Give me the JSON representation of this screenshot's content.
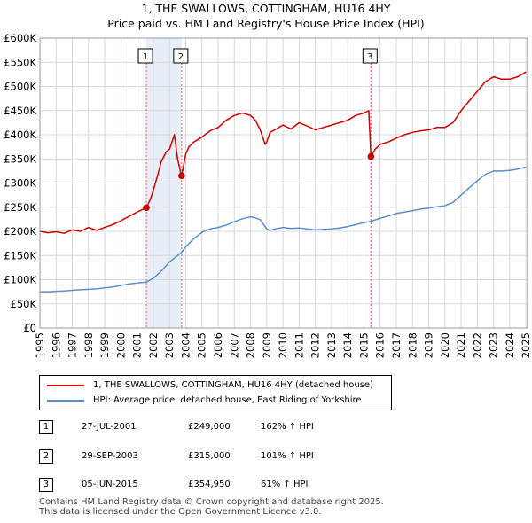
{
  "title_line1": "1, THE SWALLOWS, COTTINGHAM, HU16 4HY",
  "title_line2": "Price paid vs. HM Land Registry's House Price Index (HPI)",
  "legend": {
    "property_label": "1, THE SWALLOWS, COTTINGHAM, HU16 4HY (detached house)",
    "hpi_label": "HPI: Average price, detached house, East Riding of Yorkshire"
  },
  "sales": [
    {
      "num": "1",
      "date": "27-JUL-2001",
      "price": "£249,000",
      "hpi": "162% ↑ HPI"
    },
    {
      "num": "2",
      "date": "29-SEP-2003",
      "price": "£315,000",
      "hpi": "101% ↑ HPI"
    },
    {
      "num": "3",
      "date": "05-JUN-2015",
      "price": "£354,950",
      "hpi": "61% ↑ HPI"
    }
  ],
  "footer_line1": "Contains HM Land Registry data © Crown copyright and database right 2025.",
  "footer_line2": "This data is licensed under the Open Government Licence v3.0.",
  "colors": {
    "property": "#cc0000",
    "hpi": "#5a8fcc",
    "shade": "#e8eef8",
    "grid": "#d8d8d8",
    "vline": "#e06060"
  },
  "chart_data": {
    "type": "line",
    "xlim": [
      1995,
      2025.1
    ],
    "ylim": [
      0,
      600000
    ],
    "yticks": [
      {
        "value": 0,
        "label": "£0"
      },
      {
        "value": 50000,
        "label": "£50K"
      },
      {
        "value": 100000,
        "label": "£100K"
      },
      {
        "value": 150000,
        "label": "£150K"
      },
      {
        "value": 200000,
        "label": "£200K"
      },
      {
        "value": 250000,
        "label": "£250K"
      },
      {
        "value": 300000,
        "label": "£300K"
      },
      {
        "value": 350000,
        "label": "£350K"
      },
      {
        "value": 400000,
        "label": "£400K"
      },
      {
        "value": 450000,
        "label": "£450K"
      },
      {
        "value": 500000,
        "label": "£500K"
      },
      {
        "value": 550000,
        "label": "£550K"
      },
      {
        "value": 600000,
        "label": "£600K"
      }
    ],
    "xticks": [
      "1995",
      "1996",
      "1997",
      "1998",
      "1999",
      "2000",
      "2001",
      "2002",
      "2003",
      "2004",
      "2005",
      "2006",
      "2007",
      "2008",
      "2009",
      "2010",
      "2011",
      "2012",
      "2013",
      "2014",
      "2015",
      "2016",
      "2017",
      "2018",
      "2019",
      "2020",
      "2021",
      "2022",
      "2023",
      "2024",
      "2025"
    ],
    "shaded_ranges": [
      [
        2001.57,
        2003.75
      ],
      [
        2025.0,
        2025.1
      ]
    ],
    "sale_markers": [
      {
        "label": "1",
        "x": 2001.57,
        "y": 249000
      },
      {
        "label": "2",
        "x": 2003.75,
        "y": 315000
      },
      {
        "label": "3",
        "x": 2015.43,
        "y": 354950
      }
    ],
    "series": [
      {
        "name": "1, THE SWALLOWS, COTTINGHAM, HU16 4HY (detached house)",
        "x": [
          1995,
          1995.5,
          1996,
          1996.5,
          1997,
          1997.5,
          1998,
          1998.5,
          1999,
          1999.5,
          2000,
          2000.5,
          2001,
          2001.57,
          2001.8,
          2002,
          2002.3,
          2002.5,
          2002.8,
          2003,
          2003.3,
          2003.5,
          2003.7,
          2003.75,
          2004,
          2004.2,
          2004.5,
          2005,
          2005.5,
          2006,
          2006.5,
          2007,
          2007.5,
          2008,
          2008.3,
          2008.6,
          2008.9,
          2009,
          2009.2,
          2009.5,
          2010,
          2010.5,
          2011,
          2011.5,
          2012,
          2012.5,
          2013,
          2013.5,
          2014,
          2014.5,
          2015,
          2015.3,
          2015.43,
          2015.7,
          2016,
          2016.5,
          2017,
          2017.5,
          2018,
          2018.5,
          2019,
          2019.5,
          2020,
          2020.5,
          2021,
          2021.5,
          2022,
          2022.5,
          2023,
          2023.5,
          2024,
          2024.5,
          2025
        ],
        "y": [
          200000,
          197000,
          199000,
          196000,
          203000,
          200000,
          208000,
          202000,
          208000,
          214000,
          222000,
          231000,
          240000,
          249000,
          265000,
          285000,
          320000,
          345000,
          365000,
          370000,
          400000,
          350000,
          320000,
          315000,
          360000,
          375000,
          385000,
          395000,
          408000,
          415000,
          430000,
          440000,
          445000,
          440000,
          430000,
          410000,
          380000,
          385000,
          405000,
          410000,
          420000,
          412000,
          425000,
          418000,
          410000,
          415000,
          420000,
          425000,
          430000,
          440000,
          445000,
          450000,
          354950,
          370000,
          380000,
          385000,
          393000,
          400000,
          405000,
          408000,
          410000,
          415000,
          415000,
          425000,
          450000,
          470000,
          490000,
          510000,
          520000,
          515000,
          515000,
          520000,
          530000
        ]
      },
      {
        "name": "HPI: Average price, detached house, East Riding of Yorkshire",
        "x": [
          1995,
          1995.5,
          1996,
          1996.5,
          1997,
          1997.5,
          1998,
          1998.5,
          1999,
          1999.5,
          2000,
          2000.5,
          2001,
          2001.57,
          2002,
          2002.5,
          2003,
          2003.5,
          2003.75,
          2004,
          2004.5,
          2005,
          2005.5,
          2006,
          2006.5,
          2007,
          2007.5,
          2008,
          2008.3,
          2008.6,
          2008.9,
          2009,
          2009.2,
          2009.5,
          2010,
          2010.5,
          2011,
          2011.5,
          2012,
          2012.5,
          2013,
          2013.5,
          2014,
          2014.5,
          2015,
          2015.43,
          2016,
          2016.5,
          2017,
          2017.5,
          2018,
          2018.5,
          2019,
          2019.5,
          2020,
          2020.5,
          2021,
          2021.5,
          2022,
          2022.5,
          2023,
          2023.5,
          2024,
          2024.5,
          2025
        ],
        "y": [
          75000,
          75000,
          76000,
          76500,
          78000,
          79000,
          80000,
          81000,
          83000,
          85000,
          88000,
          91000,
          93000,
          95000,
          103000,
          118000,
          137000,
          150000,
          157000,
          168000,
          185000,
          198000,
          205000,
          208000,
          213000,
          220000,
          226000,
          230000,
          228000,
          224000,
          210000,
          205000,
          202000,
          205000,
          208000,
          206000,
          207000,
          205000,
          203000,
          204000,
          205000,
          207000,
          210000,
          214000,
          218000,
          221000,
          227000,
          232000,
          237000,
          240000,
          243000,
          246000,
          248000,
          251000,
          253000,
          260000,
          275000,
          290000,
          305000,
          318000,
          325000,
          325000,
          326000,
          329000,
          333000
        ]
      }
    ]
  }
}
